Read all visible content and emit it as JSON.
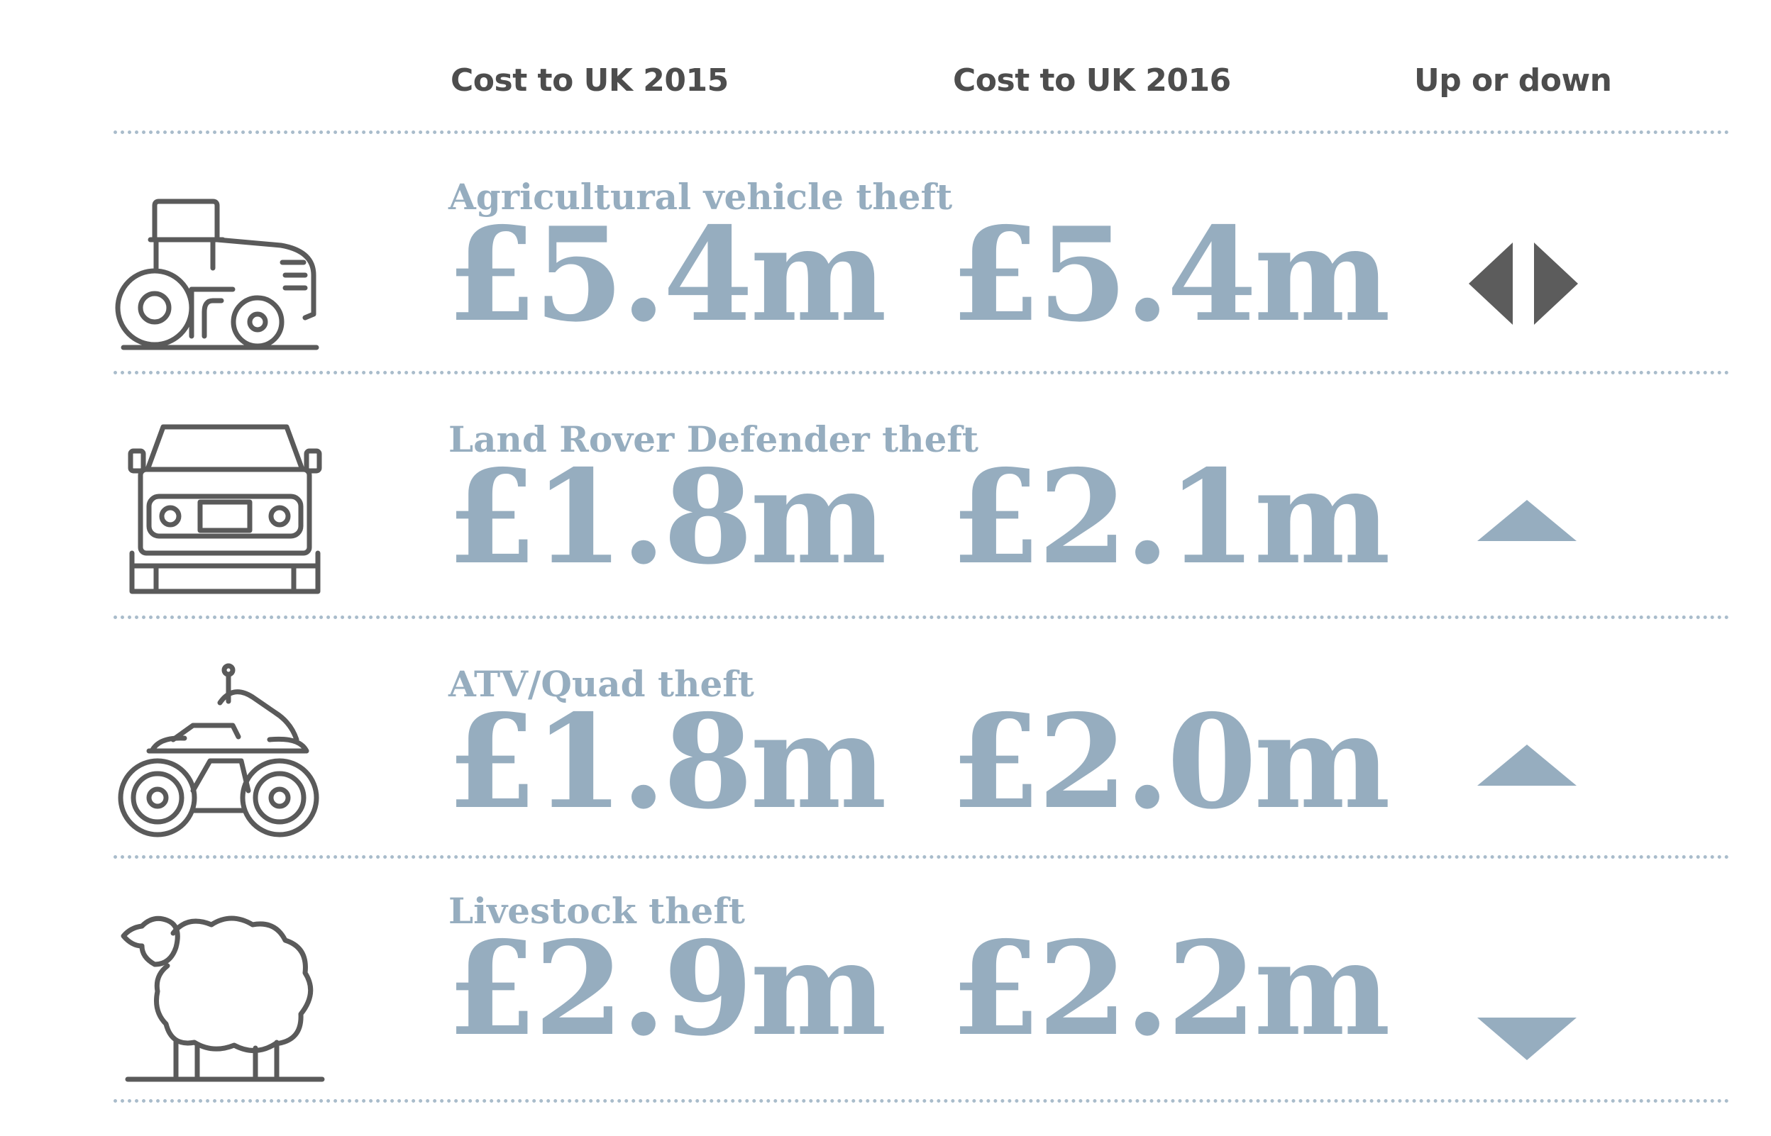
{
  "headers": {
    "col_2015": "Cost to UK 2015",
    "col_2016": "Cost to UK 2016",
    "col_trend": "Up or down"
  },
  "colors": {
    "value_blue": "#96adbf",
    "icon_gray": "#5a5a5a",
    "same_arrow_gray": "#5c5c5c",
    "divider": "#a9bccb"
  },
  "chart_data": {
    "type": "table",
    "columns": [
      "Cost to UK 2015",
      "Cost to UK 2016",
      "Up or down"
    ],
    "unit": "£ million",
    "rows": [
      {
        "category": "Agricultural vehicle theft",
        "icon": "tractor-icon",
        "value_2015_label": "£5.4m",
        "value_2016_label": "£5.4m",
        "value_2015": 5.4,
        "value_2016": 5.4,
        "trend": "same"
      },
      {
        "category": "Land Rover Defender theft",
        "icon": "land-rover-icon",
        "value_2015_label": "£1.8m",
        "value_2016_label": "£2.1m",
        "value_2015": 1.8,
        "value_2016": 2.1,
        "trend": "up"
      },
      {
        "category": "ATV/Quad theft",
        "icon": "quad-bike-icon",
        "value_2015_label": "£1.8m",
        "value_2016_label": "£2.0m",
        "value_2015": 1.8,
        "value_2016": 2.0,
        "trend": "up"
      },
      {
        "category": "Livestock theft",
        "icon": "sheep-icon",
        "value_2015_label": "£2.9m",
        "value_2016_label": "£2.2m",
        "value_2015": 2.9,
        "value_2016": 2.2,
        "trend": "down"
      }
    ]
  }
}
